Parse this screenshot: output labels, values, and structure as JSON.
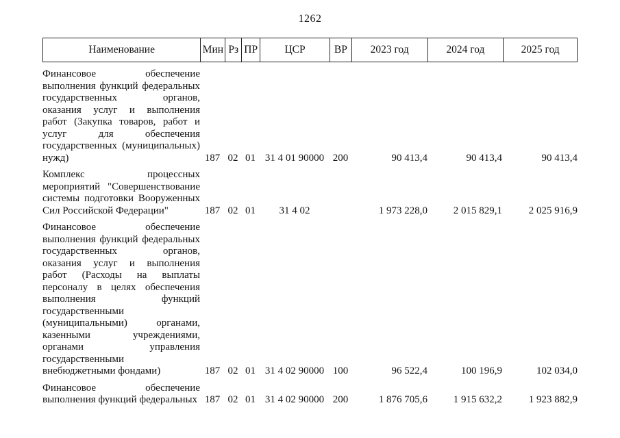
{
  "page": {
    "number": "1262"
  },
  "table": {
    "headers": [
      "Наименование",
      "Мин",
      "Рз",
      "ПР",
      "ЦСР",
      "ВР",
      "2023 год",
      "2024 год",
      "2025 год"
    ],
    "rows": [
      {
        "name_lines": [
          "Финансовое обеспечение",
          "выполнения функций федеральных",
          "государственных органов,",
          "оказания услуг и выполнения",
          "работ (Закупка товаров, работ и",
          "услуг для обеспечения",
          "государственных (муниципальных)",
          "нужд)"
        ],
        "min": "187",
        "rz": "02",
        "pr": "01",
        "csr": "31 4 01 90000",
        "vr": "200",
        "y2023": "90 413,4",
        "y2024": "90 413,4",
        "y2025": "90 413,4"
      },
      {
        "name_lines": [
          "Комплекс процессных",
          "мероприятий \"Совершенствование",
          "системы подготовки Вооруженных",
          "Сил Российской Федерации\""
        ],
        "min": "187",
        "rz": "02",
        "pr": "01",
        "csr": "31 4 02",
        "vr": "",
        "y2023": "1 973 228,0",
        "y2024": "2 015 829,1",
        "y2025": "2 025 916,9"
      },
      {
        "name_lines": [
          "Финансовое обеспечение",
          "выполнения функций федеральных",
          "государственных органов,",
          "оказания услуг и выполнения",
          "работ (Расходы на выплаты",
          "персоналу в целях обеспечения",
          "выполнения функций",
          "государственными",
          "(муниципальными) органами,",
          "казенными учреждениями,",
          "органами управления",
          "государственными",
          "внебюджетными фондами)"
        ],
        "min": "187",
        "rz": "02",
        "pr": "01",
        "csr": "31 4 02 90000",
        "vr": "100",
        "y2023": "96 522,4",
        "y2024": "100 196,9",
        "y2025": "102 034,0"
      },
      {
        "name_lines": [
          "Финансовое обеспечение",
          "выполнения функций федеральных"
        ],
        "min": "187",
        "rz": "02",
        "pr": "01",
        "csr": "31 4 02 90000",
        "vr": "200",
        "y2023": "1 876 705,6",
        "y2024": "1 915 632,2",
        "y2025": "1 923 882,9"
      }
    ]
  }
}
